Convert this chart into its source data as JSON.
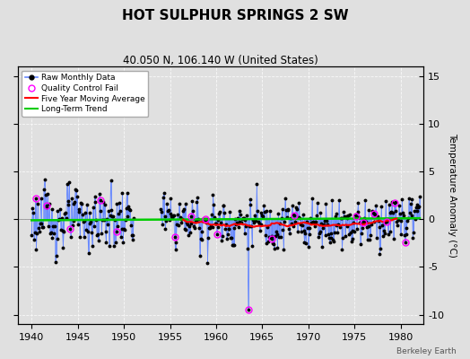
{
  "title": "HOT SULPHUR SPRINGS 2 SW",
  "subtitle": "40.050 N, 106.140 W (United States)",
  "ylabel": "Temperature Anomaly (°C)",
  "credit": "Berkeley Earth",
  "xlim": [
    1938.5,
    1982.5
  ],
  "ylim": [
    -11,
    16
  ],
  "yticks": [
    -10,
    -5,
    0,
    5,
    10,
    15
  ],
  "xticks": [
    1940,
    1945,
    1950,
    1955,
    1960,
    1965,
    1970,
    1975,
    1980
  ],
  "bg_color": "#e0e0e0",
  "plot_bg_color": "#e0e0e0",
  "raw_line_color": "#6688ff",
  "raw_dot_color": "#000000",
  "moving_avg_color": "#ff0000",
  "trend_color": "#00cc00",
  "qc_fail_color": "#ff00ff",
  "title_fontsize": 11,
  "subtitle_fontsize": 8.5,
  "seed": 123
}
